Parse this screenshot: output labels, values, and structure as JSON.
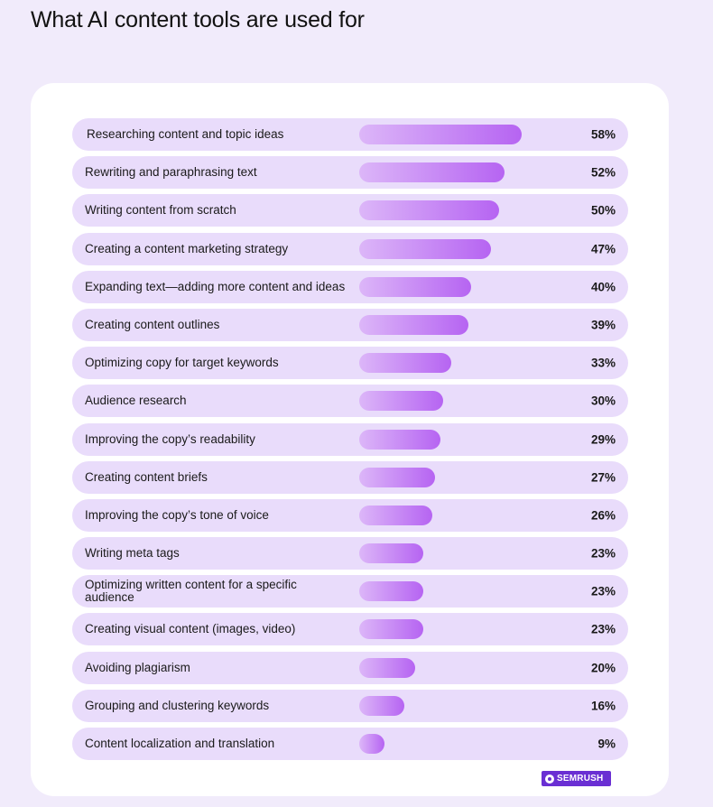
{
  "page": {
    "title": "What AI content tools are used for"
  },
  "brand": {
    "logo_text": "SEMRUSH",
    "color": "#6a2fd3"
  },
  "colors": {
    "background": "#f1ebfb",
    "row": "#e9dcfb",
    "bar_start": "#dcb6f8",
    "bar_end": "#b664f2"
  },
  "chart_data": {
    "type": "bar",
    "orientation": "horizontal",
    "title": "What AI content tools are used for",
    "unit": "%",
    "xlim": [
      0,
      100
    ],
    "categories": [
      "Researching content and topic ideas",
      "Rewriting and paraphrasing text",
      "Writing content from scratch",
      "Creating a content marketing strategy",
      "Expanding text—adding more content and ideas",
      "Creating content outlines",
      "Optimizing copy for target keywords",
      "Audience research",
      "Improving the copy’s readability",
      "Creating content briefs",
      "Improving the copy’s tone of voice",
      "Writing meta tags",
      "Optimizing written content for a specific audience",
      "Creating visual content (images, video)",
      "Avoiding plagiarism",
      "Grouping and clustering keywords",
      "Content localization and translation"
    ],
    "values": [
      58,
      52,
      50,
      47,
      40,
      39,
      33,
      30,
      29,
      27,
      26,
      23,
      23,
      23,
      20,
      16,
      9
    ],
    "value_labels": [
      "58%",
      "52%",
      "50%",
      "47%",
      "40%",
      "39%",
      "33%",
      "30%",
      "29%",
      "27%",
      "26%",
      "23%",
      "23%",
      "23%",
      "20%",
      "16%",
      "9%"
    ]
  }
}
